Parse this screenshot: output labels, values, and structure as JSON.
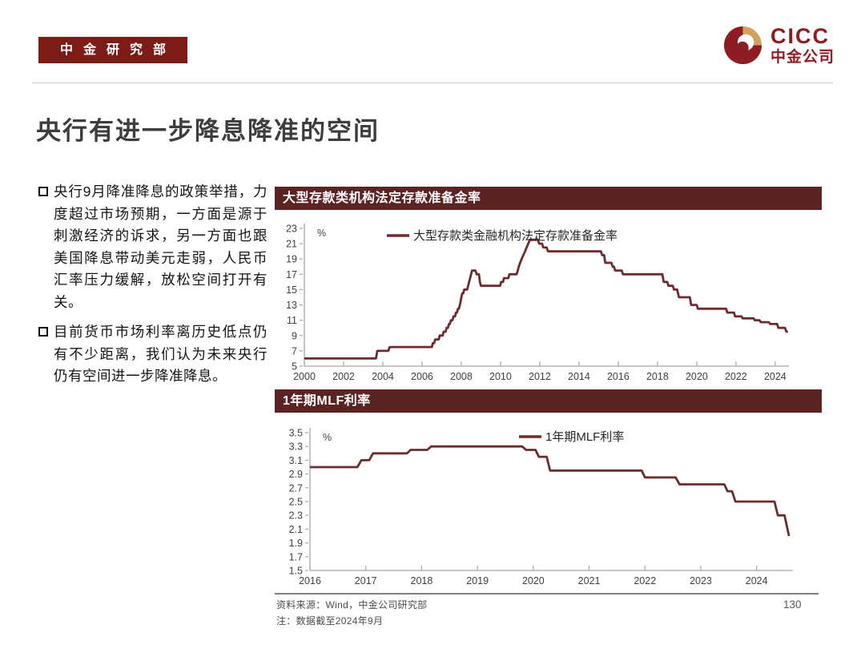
{
  "header": {
    "badge": "中金研究部",
    "logo": {
      "en": "CICC",
      "cn": "中金公司"
    }
  },
  "page": {
    "title": "央行有进一步降息降准的空间",
    "page_number": "130"
  },
  "bullets": {
    "icon": "hollow-square",
    "items": [
      {
        "text": "央行9月降准降息的政策举措，力度超过市场预期，一方面是源于刺激经济的诉求，另一方面也跟美国降息带动美元走弱，人民币汇率压力缓解，放松空间打开有关。"
      },
      {
        "text": "目前货币市场利率离历史低点仍有不少距离，我们认为未来央行仍有空间进一步降准降息。"
      }
    ]
  },
  "footer": {
    "source": "资料来源：Wind，中金公司研究部",
    "note": "注：数据截至2024年9月"
  },
  "colors": {
    "line_maroon": "#6e2b2e",
    "chart_header_bg": "#5c2323",
    "badge_bg": "#7d1b16",
    "logo_red": "#8d1d22",
    "logo_gold": "#d0a25e",
    "axis_gray": "#a6a6a6"
  },
  "chart_data": [
    {
      "type": "line",
      "title": "大型存款类机构法定存款准备金率",
      "unit": "%",
      "xlim": [
        2000,
        2024.7
      ],
      "ylim": [
        5,
        23
      ],
      "ytick_step": 2,
      "ytick_decimals": 0,
      "xticks": [
        2000,
        2002,
        2004,
        2006,
        2008,
        2010,
        2012,
        2014,
        2016,
        2018,
        2020,
        2022,
        2024
      ],
      "grid": false,
      "legend_position": "top-center",
      "series": [
        {
          "name": "大型存款类金融机构法定存款准备金率",
          "color": "#6e2b2e",
          "points": [
            [
              2000,
              6
            ],
            [
              2003.65,
              6
            ],
            [
              2003.72,
              7
            ],
            [
              2004.28,
              7
            ],
            [
              2004.35,
              7.5
            ],
            [
              2006.5,
              7.5
            ],
            [
              2006.55,
              8
            ],
            [
              2006.62,
              8
            ],
            [
              2006.67,
              8.5
            ],
            [
              2006.85,
              8.5
            ],
            [
              2006.9,
              9
            ],
            [
              2007.05,
              9
            ],
            [
              2007.1,
              9.5
            ],
            [
              2007.2,
              9.5
            ],
            [
              2007.25,
              10
            ],
            [
              2007.32,
              10
            ],
            [
              2007.37,
              10.5
            ],
            [
              2007.42,
              10.5
            ],
            [
              2007.47,
              11
            ],
            [
              2007.55,
              11
            ],
            [
              2007.6,
              11.5
            ],
            [
              2007.68,
              11.5
            ],
            [
              2007.73,
              12
            ],
            [
              2007.78,
              12
            ],
            [
              2007.83,
              12.5
            ],
            [
              2007.88,
              12.5
            ],
            [
              2007.93,
              13
            ],
            [
              2007.97,
              13.5
            ],
            [
              2008.0,
              14
            ],
            [
              2008.05,
              14.5
            ],
            [
              2008.1,
              14.5
            ],
            [
              2008.15,
              15
            ],
            [
              2008.3,
              15
            ],
            [
              2008.35,
              15.5
            ],
            [
              2008.4,
              16
            ],
            [
              2008.45,
              16.5
            ],
            [
              2008.5,
              17
            ],
            [
              2008.55,
              17.5
            ],
            [
              2008.72,
              17.5
            ],
            [
              2008.78,
              17
            ],
            [
              2008.9,
              17
            ],
            [
              2008.95,
              16
            ],
            [
              2009.0,
              15.5
            ],
            [
              2009.98,
              15.5
            ],
            [
              2010.03,
              16
            ],
            [
              2010.13,
              16
            ],
            [
              2010.18,
              16.5
            ],
            [
              2010.4,
              16.5
            ],
            [
              2010.45,
              17
            ],
            [
              2010.82,
              17
            ],
            [
              2010.88,
              17.5
            ],
            [
              2010.93,
              18
            ],
            [
              2011.0,
              18.5
            ],
            [
              2011.08,
              19
            ],
            [
              2011.16,
              19.5
            ],
            [
              2011.25,
              20
            ],
            [
              2011.33,
              20.5
            ],
            [
              2011.41,
              21
            ],
            [
              2011.5,
              21.5
            ],
            [
              2011.9,
              21.5
            ],
            [
              2011.97,
              21
            ],
            [
              2012.12,
              21
            ],
            [
              2012.18,
              20.5
            ],
            [
              2012.35,
              20.5
            ],
            [
              2012.42,
              20
            ],
            [
              2015.12,
              20
            ],
            [
              2015.18,
              19.5
            ],
            [
              2015.28,
              19.5
            ],
            [
              2015.34,
              18.5
            ],
            [
              2015.65,
              18.5
            ],
            [
              2015.72,
              18
            ],
            [
              2015.78,
              18
            ],
            [
              2015.84,
              17.5
            ],
            [
              2016.18,
              17.5
            ],
            [
              2016.24,
              17
            ],
            [
              2018.25,
              17
            ],
            [
              2018.32,
              16
            ],
            [
              2018.5,
              16
            ],
            [
              2018.56,
              15.5
            ],
            [
              2018.78,
              15.5
            ],
            [
              2018.84,
              15
            ],
            [
              2019.0,
              15
            ],
            [
              2019.05,
              14.5
            ],
            [
              2019.1,
              14
            ],
            [
              2019.65,
              14
            ],
            [
              2019.72,
              13
            ],
            [
              2020.0,
              13
            ],
            [
              2020.06,
              12.5
            ],
            [
              2021.5,
              12.5
            ],
            [
              2021.56,
              12
            ],
            [
              2021.9,
              12
            ],
            [
              2021.96,
              11.5
            ],
            [
              2022.28,
              11.5
            ],
            [
              2022.34,
              11.25
            ],
            [
              2022.9,
              11.25
            ],
            [
              2022.96,
              11
            ],
            [
              2023.2,
              11
            ],
            [
              2023.26,
              10.75
            ],
            [
              2023.68,
              10.75
            ],
            [
              2023.74,
              10.5
            ],
            [
              2024.1,
              10.5
            ],
            [
              2024.16,
              10
            ],
            [
              2024.5,
              10
            ],
            [
              2024.57,
              9.5
            ],
            [
              2024.65,
              9.5
            ]
          ]
        }
      ]
    },
    {
      "type": "line",
      "title": "1年期MLF利率",
      "unit": "%",
      "xlim": [
        2016,
        2024.65
      ],
      "ylim": [
        1.5,
        3.5
      ],
      "ytick_step": 0.2,
      "ytick_decimals": 1,
      "xticks": [
        2016,
        2017,
        2018,
        2019,
        2020,
        2021,
        2022,
        2023,
        2024
      ],
      "grid": false,
      "legend_position": "top-center",
      "series": [
        {
          "name": "1年期MLF利率",
          "color": "#6e2b2e",
          "points": [
            [
              2016,
              3.0
            ],
            [
              2016.85,
              3.0
            ],
            [
              2016.92,
              3.1
            ],
            [
              2017.06,
              3.1
            ],
            [
              2017.13,
              3.2
            ],
            [
              2017.74,
              3.2
            ],
            [
              2017.8,
              3.25
            ],
            [
              2018.1,
              3.25
            ],
            [
              2018.17,
              3.3
            ],
            [
              2019.8,
              3.3
            ],
            [
              2019.87,
              3.25
            ],
            [
              2020.04,
              3.25
            ],
            [
              2020.1,
              3.15
            ],
            [
              2020.24,
              3.15
            ],
            [
              2020.3,
              2.95
            ],
            [
              2021.94,
              2.95
            ],
            [
              2022.0,
              2.85
            ],
            [
              2022.55,
              2.85
            ],
            [
              2022.62,
              2.75
            ],
            [
              2023.42,
              2.75
            ],
            [
              2023.48,
              2.65
            ],
            [
              2023.56,
              2.65
            ],
            [
              2023.62,
              2.5
            ],
            [
              2024.32,
              2.5
            ],
            [
              2024.38,
              2.3
            ],
            [
              2024.5,
              2.3
            ],
            [
              2024.58,
              2.0
            ]
          ]
        }
      ]
    }
  ]
}
